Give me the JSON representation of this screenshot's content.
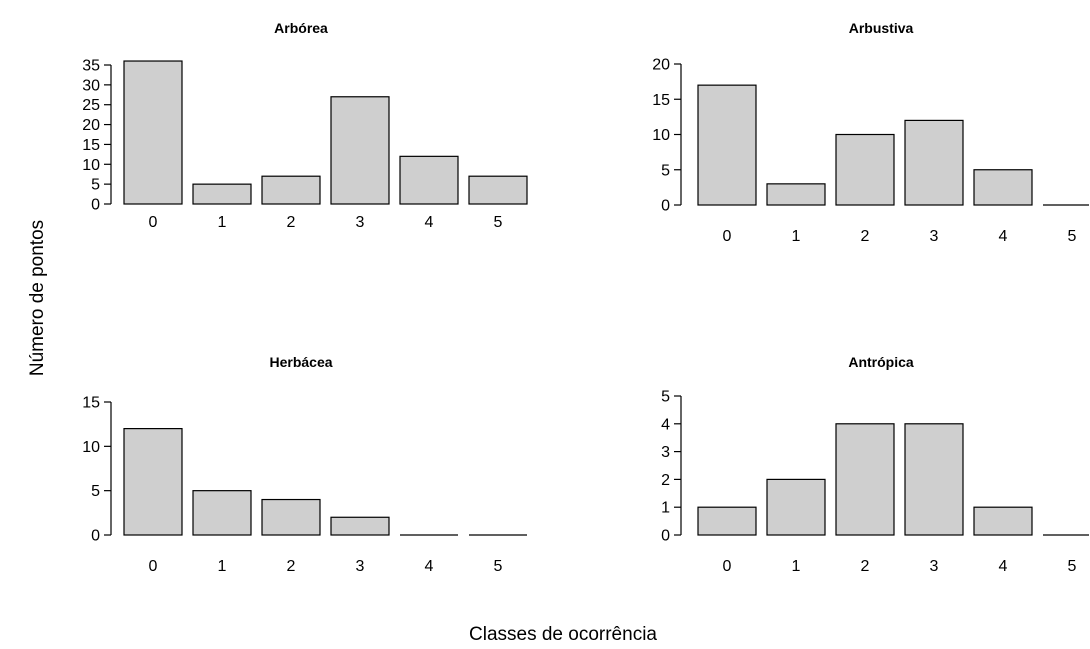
{
  "figure": {
    "xlabel": "Classes de ocorrência",
    "ylabel": "Número de pontos"
  },
  "chart_data": [
    {
      "type": "bar",
      "title": "Arbórea",
      "categories": [
        "0",
        "1",
        "2",
        "3",
        "4",
        "5"
      ],
      "values": [
        36,
        5,
        7,
        27,
        12,
        7
      ],
      "yticks": [
        0,
        5,
        10,
        15,
        20,
        25,
        30,
        35
      ],
      "ylim": [
        0,
        35
      ],
      "grid": false
    },
    {
      "type": "bar",
      "title": "Arbustiva",
      "categories": [
        "0",
        "1",
        "2",
        "3",
        "4",
        "5"
      ],
      "values": [
        17,
        3,
        10,
        12,
        5,
        0
      ],
      "yticks": [
        0,
        5,
        10,
        15,
        20
      ],
      "ylim": [
        0,
        20
      ],
      "grid": false
    },
    {
      "type": "bar",
      "title": "Herbácea",
      "categories": [
        "0",
        "1",
        "2",
        "3",
        "4",
        "5"
      ],
      "values": [
        12,
        5,
        4,
        2,
        0,
        0
      ],
      "yticks": [
        0,
        5,
        10,
        15
      ],
      "ylim": [
        0,
        15
      ],
      "grid": false
    },
    {
      "type": "bar",
      "title": "Antrópica",
      "categories": [
        "0",
        "1",
        "2",
        "3",
        "4",
        "5"
      ],
      "values": [
        1,
        2,
        4,
        4,
        1,
        0
      ],
      "yticks": [
        0,
        1,
        2,
        3,
        4,
        5
      ],
      "ylim": [
        0,
        5
      ],
      "grid": false
    }
  ]
}
